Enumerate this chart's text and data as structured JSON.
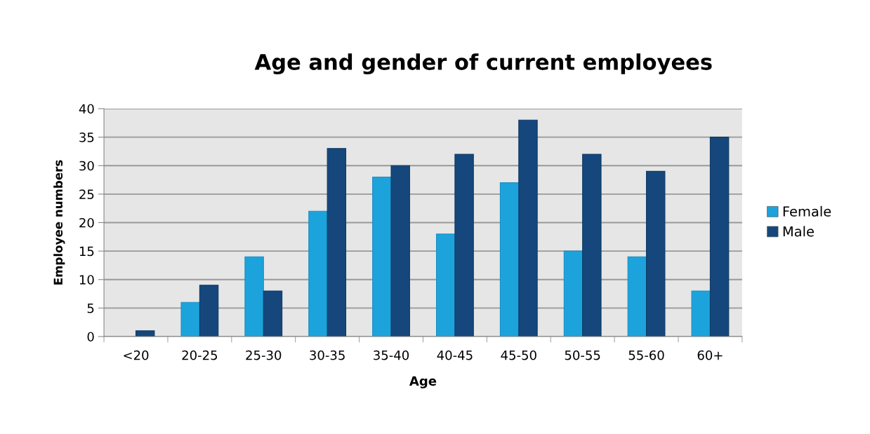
{
  "chart_data": {
    "type": "bar",
    "title": "Age and gender of current employees",
    "xlabel": "Age",
    "ylabel": "Employee numbers",
    "categories": [
      "<20",
      "20-25",
      "25-30",
      "30-35",
      "35-40",
      "40-45",
      "45-50",
      "50-55",
      "55-60",
      "60+"
    ],
    "series": [
      {
        "name": "Female",
        "color": "#1ca3dc",
        "values": [
          null,
          6,
          14,
          22,
          28,
          18,
          27,
          15,
          14,
          8
        ]
      },
      {
        "name": "Male",
        "color": "#15477c",
        "values": [
          1,
          9,
          8,
          33,
          30,
          32,
          38,
          32,
          29,
          35
        ]
      }
    ],
    "ylim": [
      0,
      40
    ],
    "yticks": [
      0,
      5,
      10,
      15,
      20,
      25,
      30,
      35,
      40
    ],
    "grid": "y",
    "legend": "right"
  }
}
